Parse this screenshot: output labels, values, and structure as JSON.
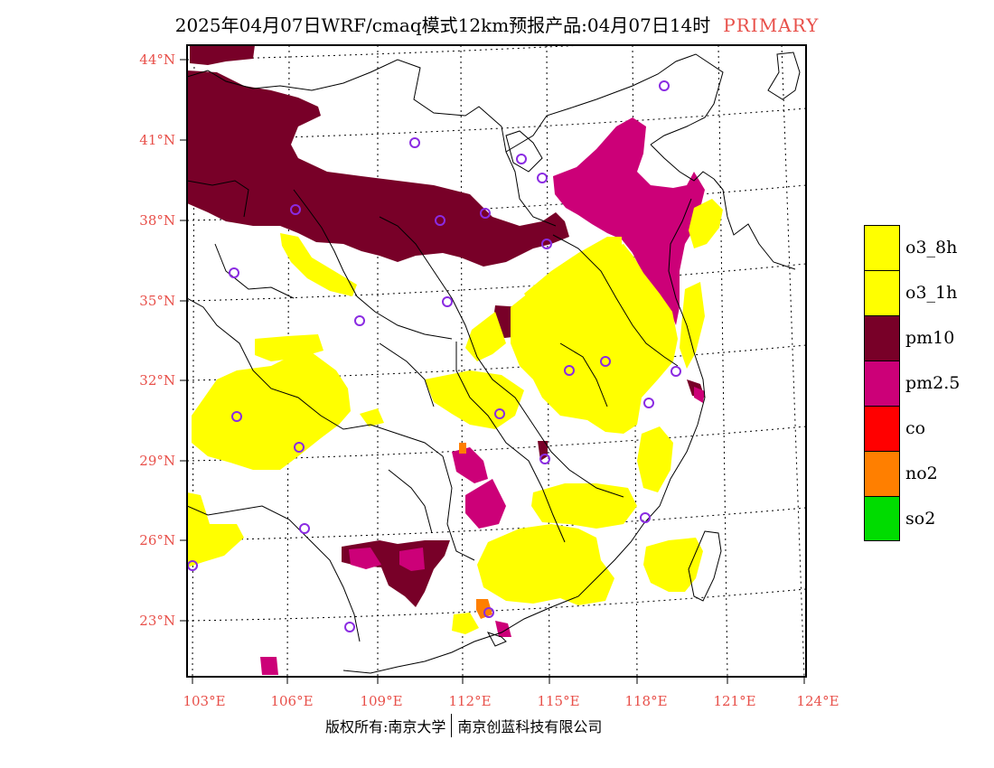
{
  "title": {
    "text": "2025年04月07日WRF/cmaq模式12km预报产品:04月07日14时",
    "tag": "PRIMARY"
  },
  "axes": {
    "lat_labels": [
      "44°N",
      "41°N",
      "38°N",
      "35°N",
      "32°N",
      "29°N",
      "26°N",
      "23°N"
    ],
    "lon_labels": [
      "103°E",
      "106°E",
      "109°E",
      "112°E",
      "115°E",
      "118°E",
      "121°E",
      "124°E"
    ]
  },
  "legend": {
    "items": [
      {
        "label": "o3_8h",
        "color": "#ffff00"
      },
      {
        "label": "o3_1h",
        "color": "#ffff00"
      },
      {
        "label": "pm10",
        "color": "#780028"
      },
      {
        "label": "pm2.5",
        "color": "#cc0078"
      },
      {
        "label": "co",
        "color": "#ff0000"
      },
      {
        "label": "no2",
        "color": "#ff7f00"
      },
      {
        "label": "so2",
        "color": "#00dc00"
      }
    ]
  },
  "footer": {
    "left": "版权所有:南京大学",
    "right": "南京创蓝科技有限公司"
  },
  "colors": {
    "axis_label": "#e8504a",
    "station_marker": "#8a2be2"
  }
}
